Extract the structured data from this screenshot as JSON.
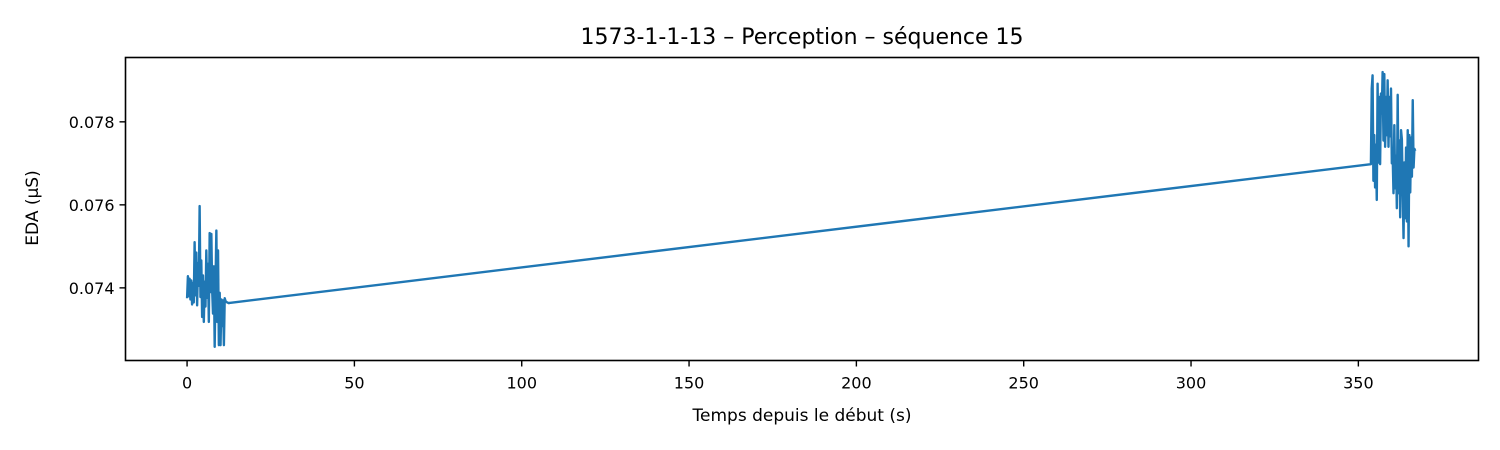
{
  "chart_data": {
    "type": "line",
    "title": "1573-1-1-13 – Perception – séquence 15",
    "xlabel": "Temps depuis le début (s)",
    "ylabel": "EDA (µS)",
    "xlim": [
      -18.4,
      385.9
    ],
    "ylim": [
      0.07225,
      0.07955
    ],
    "xticks": [
      0,
      50,
      100,
      150,
      200,
      250,
      300,
      350
    ],
    "yticks": [
      0.074,
      0.076,
      0.078
    ],
    "ytick_labels": [
      "0.074",
      "0.076",
      "0.078"
    ],
    "grid": false,
    "legend": "none",
    "series": [
      {
        "color": "#1f77b4",
        "x": [
          0,
          0.25,
          0.5,
          0.75,
          1,
          1.25,
          1.5,
          1.75,
          2,
          2.25,
          2.5,
          2.75,
          3,
          3.25,
          3.5,
          3.75,
          4,
          4.25,
          4.5,
          4.75,
          5,
          5.25,
          5.5,
          5.75,
          6,
          6.25,
          6.5,
          6.75,
          7,
          7.25,
          7.5,
          7.75,
          8,
          8.25,
          8.5,
          8.75,
          9,
          9.25,
          9.5,
          9.75,
          10,
          10.25,
          10.5,
          10.75,
          11,
          11.25,
          11.5,
          11.75,
          12,
          12.25,
          12.5,
          12.75,
          13,
          353.75,
          354,
          354.25,
          354.5,
          354.75,
          355,
          355.25,
          355.5,
          355.75,
          356,
          356.25,
          356.5,
          356.75,
          357,
          357.25,
          357.5,
          357.75,
          358,
          358.25,
          358.5,
          358.75,
          359,
          359.25,
          359.5,
          359.75,
          360,
          360.25,
          360.5,
          360.75,
          361,
          361.25,
          361.5,
          361.75,
          362,
          362.25,
          362.5,
          362.75,
          363,
          363.25,
          363.5,
          363.75,
          364,
          364.25,
          364.5,
          364.75,
          365,
          365.25,
          365.5,
          365.75,
          366,
          366.25,
          366.5,
          366.75,
          367
        ],
        "y": [
          0.07375,
          0.07428,
          0.0738,
          0.07422,
          0.07372,
          0.07418,
          0.0736,
          0.07412,
          0.07365,
          0.0751,
          0.07382,
          0.07485,
          0.07358,
          0.0746,
          0.07405,
          0.07597,
          0.07378,
          0.07466,
          0.0733,
          0.0743,
          0.07318,
          0.07415,
          0.07355,
          0.0749,
          0.07376,
          0.07458,
          0.07318,
          0.07532,
          0.0739,
          0.0753,
          0.07395,
          0.07338,
          0.07452,
          0.07258,
          0.0741,
          0.07538,
          0.07318,
          0.0749,
          0.07262,
          0.07388,
          0.07262,
          0.07372,
          0.07308,
          0.0737,
          0.07262,
          0.07375,
          0.07368,
          0.07366,
          0.07365,
          0.07364,
          0.07363,
          0.07364,
          0.07364,
          0.07698,
          0.0788,
          0.07912,
          0.07658,
          0.07768,
          0.07642,
          0.07745,
          0.07612,
          0.07892,
          0.07702,
          0.0786,
          0.07698,
          0.07868,
          0.0782,
          0.0792,
          0.07755,
          0.07915,
          0.0774,
          0.0786,
          0.07768,
          0.079,
          0.0774,
          0.0786,
          0.07765,
          0.0788,
          0.077,
          0.0772,
          0.07628,
          0.07792,
          0.0764,
          0.07718,
          0.07592,
          0.07865,
          0.07628,
          0.07755,
          0.0757,
          0.0778,
          0.07758,
          0.07636,
          0.0752,
          0.07702,
          0.07568,
          0.07738,
          0.0756,
          0.0778,
          0.075,
          0.07768,
          0.0763,
          0.07762,
          0.07668,
          0.07852,
          0.0769,
          0.07735,
          0.0773
        ]
      }
    ]
  }
}
